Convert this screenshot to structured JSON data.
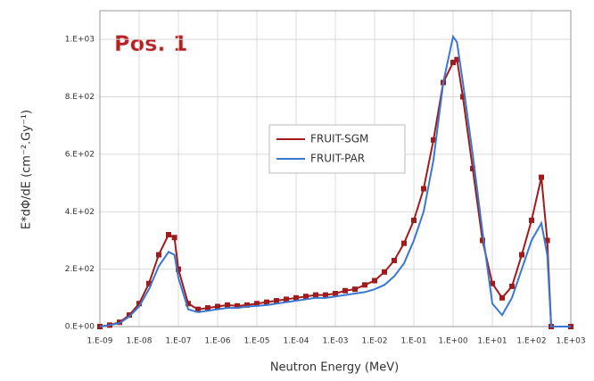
{
  "chart_data": {
    "type": "line",
    "annotation": "Pos. 1",
    "xlabel": "Neutron Energy (MeV)",
    "ylabel": "E*dΦ/dE  (cm⁻².Gy⁻¹)",
    "xscale": "log",
    "grid": true,
    "legend": "center",
    "xlim": [
      1e-09,
      1000
    ],
    "xticks": [
      {
        "value": 1e-09,
        "label": "1.E-09"
      },
      {
        "value": 1e-08,
        "label": "1.E-08"
      },
      {
        "value": 1e-07,
        "label": "1.E-07"
      },
      {
        "value": 1e-06,
        "label": "1.E-06"
      },
      {
        "value": 1e-05,
        "label": "1.E-05"
      },
      {
        "value": 0.0001,
        "label": "1.E-04"
      },
      {
        "value": 0.001,
        "label": "1.E-03"
      },
      {
        "value": 0.01,
        "label": "1.E-02"
      },
      {
        "value": 0.1,
        "label": "1.E-01"
      },
      {
        "value": 1,
        "label": "1.E+00"
      },
      {
        "value": 10,
        "label": "1.E+01"
      },
      {
        "value": 100,
        "label": "1.E+02"
      },
      {
        "value": 1000,
        "label": "1.E+03"
      }
    ],
    "ylim": [
      0,
      1100
    ],
    "yticks": [
      {
        "value": 0,
        "label": "0.E+00"
      },
      {
        "value": 200,
        "label": "2.E+02"
      },
      {
        "value": 400,
        "label": "4.E+02"
      },
      {
        "value": 600,
        "label": "6.E+02"
      },
      {
        "value": 800,
        "label": "8.E+02"
      },
      {
        "value": 1000,
        "label": "1.E+03"
      }
    ],
    "x": [
      1e-09,
      1.778e-09,
      3.162e-09,
      5.623e-09,
      1e-08,
      1.778e-08,
      3.162e-08,
      5.623e-08,
      7.943e-08,
      1e-07,
      1.778e-07,
      3.162e-07,
      5.623e-07,
      1e-06,
      1.778e-06,
      3.162e-06,
      5.623e-06,
      1e-05,
      1.778e-05,
      3.162e-05,
      5.623e-05,
      0.0001,
      0.0001778,
      0.0003162,
      0.0005623,
      0.001,
      0.001778,
      0.003162,
      0.005623,
      0.01,
      0.01778,
      0.03162,
      0.05623,
      0.1,
      0.1778,
      0.3162,
      0.5623,
      1,
      1.259,
      1.778,
      3.162,
      5.623,
      10,
      17.78,
      31.62,
      56.23,
      100,
      177.8,
      251.2,
      316.2,
      1000
    ],
    "series": [
      {
        "name": "FRUIT-SGM",
        "color": "#a01c1c",
        "markers": true,
        "values": [
          0,
          5,
          15,
          40,
          80,
          150,
          250,
          320,
          310,
          200,
          80,
          60,
          65,
          70,
          75,
          72,
          75,
          80,
          85,
          90,
          95,
          100,
          105,
          110,
          110,
          115,
          125,
          130,
          145,
          160,
          190,
          230,
          290,
          370,
          480,
          650,
          850,
          920,
          930,
          800,
          550,
          300,
          150,
          100,
          140,
          250,
          370,
          520,
          300,
          0,
          0
        ]
      },
      {
        "name": "FRUIT-PAR",
        "color": "#3a78d0",
        "markers": false,
        "values": [
          0,
          5,
          12,
          35,
          70,
          130,
          210,
          260,
          250,
          170,
          60,
          50,
          55,
          60,
          65,
          65,
          70,
          72,
          75,
          80,
          85,
          90,
          95,
          100,
          100,
          105,
          110,
          115,
          120,
          130,
          145,
          175,
          220,
          300,
          400,
          580,
          850,
          1010,
          990,
          850,
          600,
          330,
          80,
          40,
          100,
          200,
          300,
          360,
          250,
          0,
          0
        ]
      }
    ]
  }
}
